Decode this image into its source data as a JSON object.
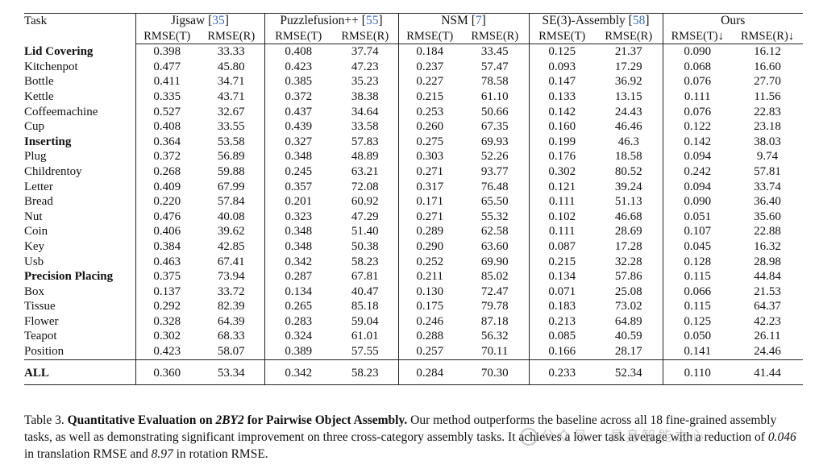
{
  "table": {
    "task_header": "Task",
    "methods": [
      {
        "name": "Jigsaw",
        "cite": "35"
      },
      {
        "name": "Puzzlefusion++",
        "cite": "55"
      },
      {
        "name": "NSM",
        "cite": "7"
      },
      {
        "name": "SE(3)-Assembly",
        "cite": "58"
      },
      {
        "name": "Ours",
        "cite": ""
      }
    ],
    "subheaders": [
      "RMSE(T)",
      "RMSE(R)",
      "RMSE(T)",
      "RMSE(R)",
      "RMSE(T)",
      "RMSE(R)",
      "RMSE(T)",
      "RMSE(R)",
      "RMSE(T)↓",
      "RMSE(R)↓"
    ],
    "rows": [
      {
        "task": "Lid Covering",
        "category": true,
        "values": [
          "0.398",
          "33.33",
          "0.408",
          "37.74",
          "0.184",
          "33.45",
          "0.125",
          "21.37",
          "0.090",
          "16.12"
        ]
      },
      {
        "task": "Kitchenpot",
        "category": false,
        "values": [
          "0.477",
          "45.80",
          "0.423",
          "47.23",
          "0.237",
          "57.47",
          "0.093",
          "17.29",
          "0.068",
          "16.60"
        ]
      },
      {
        "task": "Bottle",
        "category": false,
        "values": [
          "0.411",
          "34.71",
          "0.385",
          "35.23",
          "0.227",
          "78.58",
          "0.147",
          "36.92",
          "0.076",
          "27.70"
        ]
      },
      {
        "task": "Kettle",
        "category": false,
        "values": [
          "0.335",
          "43.71",
          "0.372",
          "38.38",
          "0.215",
          "61.10",
          "0.133",
          "13.15",
          "0.111",
          "11.56"
        ]
      },
      {
        "task": "Coffeemachine",
        "category": false,
        "values": [
          "0.527",
          "32.67",
          "0.437",
          "34.64",
          "0.253",
          "50.66",
          "0.142",
          "24.43",
          "0.076",
          "22.83"
        ]
      },
      {
        "task": "Cup",
        "category": false,
        "values": [
          "0.408",
          "33.55",
          "0.439",
          "33.58",
          "0.260",
          "67.35",
          "0.160",
          "46.46",
          "0.122",
          "23.18"
        ]
      },
      {
        "task": "Inserting",
        "category": true,
        "values": [
          "0.364",
          "53.58",
          "0.327",
          "57.83",
          "0.275",
          "69.93",
          "0.199",
          "46.3",
          "0.142",
          "38.03"
        ]
      },
      {
        "task": "Plug",
        "category": false,
        "values": [
          "0.372",
          "56.89",
          "0.348",
          "48.89",
          "0.303",
          "52.26",
          "0.176",
          "18.58",
          "0.094",
          "9.74"
        ]
      },
      {
        "task": "Childrentoy",
        "category": false,
        "values": [
          "0.268",
          "59.88",
          "0.245",
          "63.21",
          "0.271",
          "93.77",
          "0.302",
          "80.52",
          "0.242",
          "57.81"
        ]
      },
      {
        "task": "Letter",
        "category": false,
        "values": [
          "0.409",
          "67.99",
          "0.357",
          "72.08",
          "0.317",
          "76.48",
          "0.121",
          "39.24",
          "0.094",
          "33.74"
        ]
      },
      {
        "task": "Bread",
        "category": false,
        "values": [
          "0.220",
          "57.84",
          "0.201",
          "60.92",
          "0.171",
          "65.50",
          "0.111",
          "51.13",
          "0.090",
          "36.40"
        ]
      },
      {
        "task": "Nut",
        "category": false,
        "values": [
          "0.476",
          "40.08",
          "0.323",
          "47.29",
          "0.271",
          "55.32",
          "0.102",
          "46.68",
          "0.051",
          "35.60"
        ]
      },
      {
        "task": "Coin",
        "category": false,
        "values": [
          "0.406",
          "39.62",
          "0.348",
          "51.40",
          "0.289",
          "62.58",
          "0.111",
          "28.69",
          "0.107",
          "22.88"
        ]
      },
      {
        "task": "Key",
        "category": false,
        "values": [
          "0.384",
          "42.85",
          "0.348",
          "50.38",
          "0.290",
          "63.60",
          "0.087",
          "17.28",
          "0.045",
          "16.32"
        ]
      },
      {
        "task": "Usb",
        "category": false,
        "values": [
          "0.463",
          "67.41",
          "0.342",
          "58.23",
          "0.252",
          "69.90",
          "0.215",
          "32.28",
          "0.128",
          "28.98"
        ]
      },
      {
        "task": "Precision Placing",
        "category": true,
        "values": [
          "0.375",
          "73.94",
          "0.287",
          "67.81",
          "0.211",
          "85.02",
          "0.134",
          "57.86",
          "0.115",
          "44.84"
        ]
      },
      {
        "task": "Box",
        "category": false,
        "values": [
          "0.137",
          "33.72",
          "0.134",
          "40.47",
          "0.130",
          "72.47",
          "0.071",
          "25.08",
          "0.066",
          "21.53"
        ]
      },
      {
        "task": "Tissue",
        "category": false,
        "values": [
          "0.292",
          "82.39",
          "0.265",
          "85.18",
          "0.175",
          "79.78",
          "0.183",
          "73.02",
          "0.115",
          "64.37"
        ]
      },
      {
        "task": "Flower",
        "category": false,
        "values": [
          "0.328",
          "64.39",
          "0.283",
          "59.04",
          "0.246",
          "87.18",
          "0.213",
          "64.89",
          "0.125",
          "42.23"
        ]
      },
      {
        "task": "Teapot",
        "category": false,
        "values": [
          "0.302",
          "68.33",
          "0.324",
          "61.01",
          "0.288",
          "56.32",
          "0.085",
          "40.59",
          "0.050",
          "26.11"
        ]
      },
      {
        "task": "Position",
        "category": false,
        "values": [
          "0.423",
          "58.07",
          "0.389",
          "57.55",
          "0.257",
          "70.11",
          "0.166",
          "28.17",
          "0.141",
          "24.46"
        ]
      }
    ],
    "all_row": {
      "task": "ALL",
      "values": [
        "0.360",
        "53.34",
        "0.342",
        "58.23",
        "0.284",
        "70.30",
        "0.233",
        "52.34",
        "0.110",
        "41.44"
      ]
    }
  },
  "caption": {
    "label": "Table 3.",
    "title_a": "Quantitative Evaluation on ",
    "title_dataset": "2BY2",
    "title_b": " for Pairwise Object Assembly.",
    "text_a": " Our method outperforms the baseline across all 18 fine-grained assembly tasks, as well as demonstrating significant improvement on three cross-category assembly tasks. It achieves a lower task average with a reduction of ",
    "val_t": "0.046",
    "text_b": " in translation RMSE and ",
    "val_r": "8.97",
    "text_c": " in rotation RMSE."
  },
  "watermark": {
    "text": "公众号 · 具身智能之心",
    "icon": "wechat-icon"
  }
}
